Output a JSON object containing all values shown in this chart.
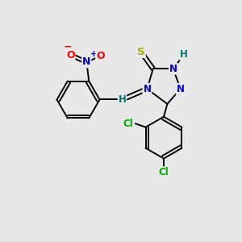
{
  "background_color": "#e8e8e8",
  "figsize": [
    3.0,
    3.0
  ],
  "dpi": 100,
  "atom_colors": {
    "C": "#000000",
    "N": "#0000cc",
    "O": "#ff0000",
    "S": "#aaaa00",
    "Cl": "#00aa00",
    "H": "#007777"
  },
  "lw": 1.4,
  "fs": 8.5
}
